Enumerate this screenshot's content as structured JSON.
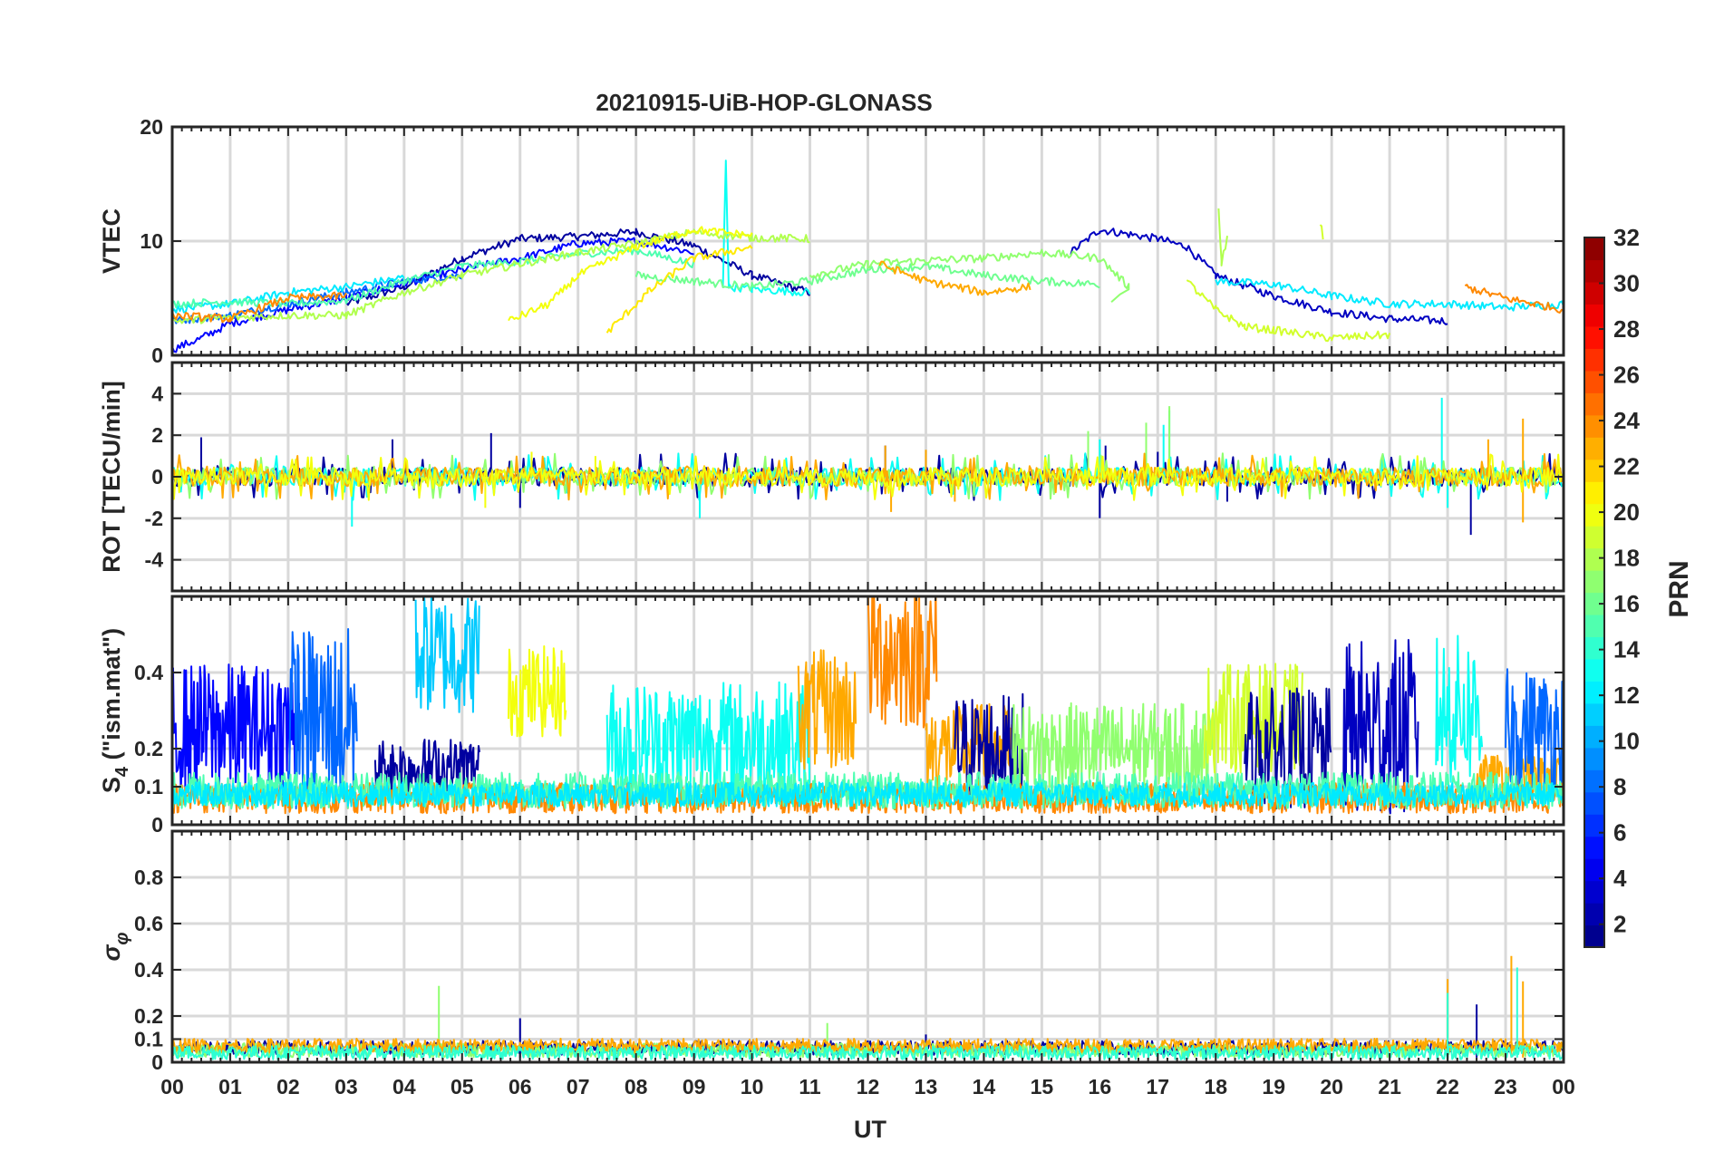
{
  "chart_data": {
    "type": "line",
    "title": "20210915-UiB-HOP-GLONASS",
    "xlabel": "UT",
    "x_ticks": [
      "00",
      "01",
      "02",
      "03",
      "04",
      "05",
      "06",
      "07",
      "08",
      "09",
      "10",
      "11",
      "12",
      "13",
      "14",
      "15",
      "16",
      "17",
      "18",
      "19",
      "20",
      "21",
      "22",
      "23",
      "00"
    ],
    "xlim": [
      0,
      24
    ],
    "colorbar": {
      "label": "PRN",
      "range": [
        1,
        32
      ],
      "ticks": [
        2,
        4,
        6,
        8,
        10,
        12,
        14,
        16,
        18,
        20,
        22,
        24,
        26,
        28,
        30,
        32
      ],
      "colormap": "jet"
    },
    "panels": [
      {
        "id": "vtec",
        "ylabel": "VTEC",
        "ylim": [
          0,
          20
        ],
        "yticks": [
          0,
          10,
          20
        ],
        "series": [
          {
            "prn": 2,
            "points": [
              [
                3,
                4.5
              ],
              [
                4,
                6
              ],
              [
                5,
                8.5
              ],
              [
                6,
                10.2
              ],
              [
                7,
                10.4
              ],
              [
                8,
                10.8
              ],
              [
                9,
                9.6
              ],
              [
                10,
                7
              ],
              [
                11,
                5.5
              ]
            ]
          },
          {
            "prn": 3,
            "points": [
              [
                15.5,
                9
              ],
              [
                16,
                11
              ],
              [
                17,
                10.2
              ],
              [
                17.5,
                9.5
              ],
              [
                18,
                7
              ],
              [
                19,
                5.2
              ],
              [
                20,
                3.8
              ],
              [
                21,
                3.2
              ],
              [
                22,
                3
              ]
            ]
          },
          {
            "prn": 5,
            "points": [
              [
                0,
                0.5
              ],
              [
                0.5,
                1.5
              ],
              [
                1,
                2.8
              ],
              [
                2,
                4
              ],
              [
                3,
                5
              ],
              [
                4,
                6.3
              ],
              [
                5,
                7.5
              ],
              [
                6,
                8.5
              ],
              [
                7,
                9.8
              ],
              [
                8,
                10
              ],
              [
                9,
                9
              ]
            ]
          },
          {
            "prn": 8,
            "points": [
              [
                0,
                3
              ],
              [
                1,
                3.5
              ],
              [
                2,
                4.5
              ],
              [
                3,
                5.5
              ],
              [
                4,
                6.5
              ],
              [
                5,
                7
              ]
            ]
          },
          {
            "prn": 12,
            "points": [
              [
                0,
                4
              ],
              [
                1,
                4.5
              ],
              [
                2,
                5.5
              ],
              [
                3,
                6
              ],
              [
                4,
                6.8
              ]
            ]
          },
          {
            "prn": 13,
            "points": [
              [
                9.5,
                6
              ],
              [
                9.55,
                17.2
              ],
              [
                9.6,
                6
              ],
              [
                10,
                5.8
              ],
              [
                11,
                5.5
              ]
            ]
          },
          {
            "prn": 12,
            "points": [
              [
                18,
                6.5
              ],
              [
                19,
                6.2
              ],
              [
                20,
                5.2
              ],
              [
                21,
                4.5
              ],
              [
                22,
                4.5
              ],
              [
                23,
                4.2
              ],
              [
                24,
                4.5
              ]
            ]
          },
          {
            "prn": 15,
            "points": [
              [
                0,
                4.5
              ],
              [
                1,
                4.7
              ],
              [
                2,
                4.5
              ],
              [
                3,
                4.8
              ],
              [
                4,
                6.5
              ],
              [
                5,
                7.8
              ],
              [
                6,
                8.2
              ],
              [
                7,
                8.9
              ],
              [
                8,
                9.2
              ],
              [
                9,
                8
              ]
            ]
          },
          {
            "prn": 16,
            "points": [
              [
                8,
                7
              ],
              [
                9,
                6.5
              ],
              [
                10,
                6
              ],
              [
                11,
                6.5
              ],
              [
                12,
                7.5
              ],
              [
                13,
                7.8
              ],
              [
                14,
                7
              ],
              [
                15,
                6.5
              ],
              [
                16,
                6.2
              ]
            ]
          },
          {
            "prn": 17,
            "points": [
              [
                11,
                7
              ],
              [
                12,
                8
              ],
              [
                13,
                8.3
              ],
              [
                14,
                8.5
              ],
              [
                15,
                9
              ],
              [
                16,
                8.5
              ],
              [
                16.5,
                6
              ],
              [
                16.2,
                5
              ]
            ]
          },
          {
            "prn": 18,
            "points": [
              [
                0,
                3
              ],
              [
                1,
                3.3
              ],
              [
                2,
                3.5
              ],
              [
                3,
                3.5
              ],
              [
                4,
                5.5
              ],
              [
                5,
                7
              ],
              [
                6,
                8
              ],
              [
                7,
                9
              ],
              [
                8,
                9.8
              ],
              [
                9,
                10.8
              ],
              [
                10,
                10.3
              ],
              [
                11,
                10.2
              ]
            ]
          },
          {
            "prn": 19,
            "points": [
              [
                17.5,
                6.5
              ],
              [
                18,
                4
              ],
              [
                18.5,
                2.5
              ],
              [
                19,
                2.2
              ],
              [
                20,
                1.5
              ],
              [
                21,
                1.8
              ]
            ]
          },
          {
            "prn": 20,
            "points": [
              [
                5.8,
                3
              ],
              [
                6.5,
                4.5
              ],
              [
                7,
                7
              ],
              [
                8,
                9.5
              ],
              [
                9,
                11
              ],
              [
                10,
                10.5
              ]
            ]
          },
          {
            "prn": 21,
            "points": [
              [
                7.5,
                2
              ],
              [
                8.2,
                5.5
              ],
              [
                9,
                8.5
              ],
              [
                10,
                9.5
              ]
            ]
          },
          {
            "prn": 23,
            "points": [
              [
                12.2,
                8
              ],
              [
                13,
                6.5
              ],
              [
                14,
                5.5
              ],
              [
                14.8,
                6
              ]
            ]
          },
          {
            "prn": 24,
            "points": [
              [
                0,
                3.5
              ],
              [
                1,
                3.2
              ],
              [
                2,
                5
              ],
              [
                3,
                5.2
              ]
            ]
          },
          {
            "prn": 24,
            "points": [
              [
                22.3,
                6
              ],
              [
                23,
                5
              ],
              [
                23.5,
                4.5
              ],
              [
                24,
                4
              ]
            ]
          },
          {
            "prn": 19,
            "points": [
              [
                19.8,
                11.5
              ],
              [
                19.85,
                10.5
              ]
            ]
          },
          {
            "prn": 18,
            "points": [
              [
                18.05,
                12.8
              ],
              [
                18.1,
                8
              ],
              [
                18.2,
                10.5
              ]
            ]
          }
        ]
      },
      {
        "id": "rot",
        "ylabel": "ROT [TECU/min]",
        "ylim": [
          -5.5,
          5.5
        ],
        "yticks": [
          -4,
          -2,
          0,
          2,
          4
        ],
        "series": [
          {
            "prn": 2,
            "spikes": [
              [
                0.5,
                1.9
              ],
              [
                3.8,
                1.8
              ],
              [
                5.5,
                2.1
              ],
              [
                6,
                -1.5
              ],
              [
                12.3,
                1.5
              ],
              [
                16,
                -2
              ],
              [
                16.1,
                1.5
              ],
              [
                17,
                1.2
              ],
              [
                18.2,
                -1.2
              ],
              [
                22.4,
                -2.8
              ]
            ]
          },
          {
            "prn": 13,
            "spikes": [
              [
                3.1,
                -2.4
              ],
              [
                9.1,
                -2
              ],
              [
                16,
                1.8
              ],
              [
                17.1,
                2.5
              ],
              [
                17.2,
                3.2
              ],
              [
                21.9,
                3.8
              ],
              [
                22,
                -1.5
              ]
            ]
          },
          {
            "prn": 17,
            "spikes": [
              [
                15.8,
                2.2
              ],
              [
                16.8,
                2.6
              ],
              [
                17.2,
                3.4
              ]
            ]
          },
          {
            "prn": 23,
            "spikes": [
              [
                12.3,
                1.5
              ],
              [
                12.4,
                -1.7
              ],
              [
                13,
                1.3
              ],
              [
                13.5,
                -1.2
              ],
              [
                22.7,
                1.8
              ],
              [
                23.3,
                2.8
              ],
              [
                23.3,
                -2.2
              ]
            ]
          },
          {
            "prn": 20,
            "spikes": [
              [
                5.4,
                -1.5
              ],
              [
                6.2,
                1.2
              ],
              [
                7.3,
                1
              ]
            ]
          }
        ]
      },
      {
        "id": "s4",
        "ylabel": "S4 (\"ism.mat\")",
        "ylabel_main": "S",
        "ylabel_sub": "4",
        "ylabel_rest": "(\"ism.mat\")",
        "ylim": [
          0,
          0.6
        ],
        "yticks": [
          0,
          0.1,
          0.2,
          0.4
        ],
        "series": [
          {
            "prn": 5,
            "segment": [
              0,
              2.2
            ],
            "level": 0.25,
            "amp": 0.22
          },
          {
            "prn": 8,
            "segment": [
              2,
              3.2
            ],
            "level": 0.28,
            "amp": 0.3
          },
          {
            "prn": 11,
            "segment": [
              4.2,
              5.3
            ],
            "level": 0.45,
            "amp": 0.2
          },
          {
            "prn": 2,
            "segment": [
              3.5,
              5.3
            ],
            "level": 0.15,
            "amp": 0.1
          },
          {
            "prn": 20,
            "segment": [
              5.8,
              6.8
            ],
            "level": 0.35,
            "amp": 0.15
          },
          {
            "prn": 13,
            "segment": [
              7.5,
              11
            ],
            "level": 0.22,
            "amp": 0.2
          },
          {
            "prn": 23,
            "segment": [
              10.8,
              11.8
            ],
            "level": 0.3,
            "amp": 0.2
          },
          {
            "prn": 24,
            "segment": [
              12,
              13.2
            ],
            "level": 0.45,
            "amp": 0.25
          },
          {
            "prn": 23,
            "segment": [
              13,
              14.5
            ],
            "level": 0.2,
            "amp": 0.15
          },
          {
            "prn": 2,
            "segment": [
              13.5,
              14.7
            ],
            "level": 0.2,
            "amp": 0.18
          },
          {
            "prn": 17,
            "segment": [
              14.5,
              18
            ],
            "level": 0.2,
            "amp": 0.15
          },
          {
            "prn": 19,
            "segment": [
              17.8,
              19.5
            ],
            "level": 0.28,
            "amp": 0.18
          },
          {
            "prn": 2,
            "segment": [
              18.5,
              20
            ],
            "level": 0.2,
            "amp": 0.2
          },
          {
            "prn": 3,
            "segment": [
              20.2,
              21.5
            ],
            "level": 0.25,
            "amp": 0.3
          },
          {
            "prn": 13,
            "segment": [
              21.8,
              22.6
            ],
            "level": 0.3,
            "amp": 0.25
          },
          {
            "prn": 23,
            "segment": [
              22.5,
              24
            ],
            "level": 0.12,
            "amp": 0.08
          },
          {
            "prn": 8,
            "segment": [
              23,
              24
            ],
            "level": 0.25,
            "amp": 0.2
          },
          {
            "prn": 24,
            "segment": [
              0,
              24
            ],
            "level": 0.07,
            "amp": 0.05
          },
          {
            "prn": 15,
            "segment": [
              0,
              24
            ],
            "level": 0.09,
            "amp": 0.06
          },
          {
            "prn": 12,
            "segment": [
              0,
              24
            ],
            "level": 0.08,
            "amp": 0.04
          }
        ]
      },
      {
        "id": "sigma_phi",
        "ylabel": "σφ",
        "ylabel_main": "σ",
        "ylabel_sub": "φ",
        "ylim": [
          0,
          1
        ],
        "yticks": [
          0,
          0.1,
          0.2,
          0.4,
          0.6,
          0.8
        ],
        "series": [
          {
            "prn": 2,
            "baseline": 0.05,
            "spikes": [
              [
                6,
                0.19
              ],
              [
                13,
                0.12
              ],
              [
                22.5,
                0.25
              ]
            ]
          },
          {
            "prn": 17,
            "baseline": 0.04,
            "spikes": [
              [
                4.6,
                0.33
              ],
              [
                11.3,
                0.17
              ]
            ]
          },
          {
            "prn": 23,
            "baseline": 0.06,
            "spikes": [
              [
                22,
                0.36
              ],
              [
                23.1,
                0.46
              ],
              [
                23.3,
                0.35
              ]
            ]
          },
          {
            "prn": 14,
            "baseline": 0.03,
            "spikes": [
              [
                23.2,
                0.41
              ],
              [
                22,
                0.3
              ]
            ]
          }
        ]
      }
    ]
  }
}
